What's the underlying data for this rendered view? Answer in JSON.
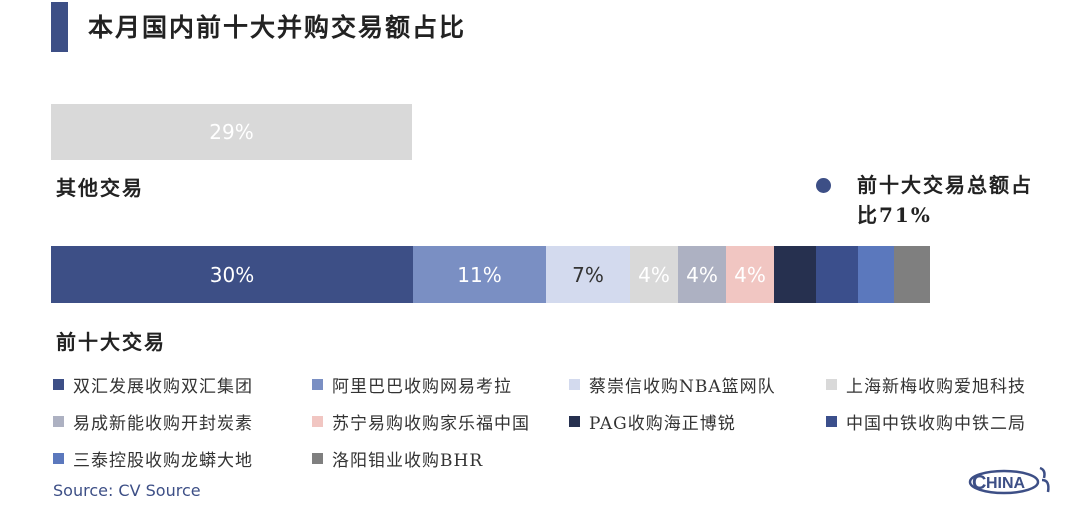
{
  "title": "本月国内前十大并购交易额占比",
  "labels": {
    "other": "其他交易",
    "top10": "前十大交易",
    "top10_total": "前十大交易总额占比71%"
  },
  "source": "Source: CV Source",
  "logo_text": "HINA",
  "chart_data": {
    "type": "bar",
    "title": "本月国内前十大并购交易额占比",
    "other": {
      "name": "其他交易",
      "value": 29,
      "label": "29%",
      "color": "#d9d9d9"
    },
    "top10_total": {
      "label": "前十大交易总额占比71%",
      "value": 71
    },
    "series": [
      {
        "name": "双汇发展收购双汇集团",
        "value": 30,
        "label": "30%",
        "color": "#3d4f86",
        "text_color": "#ffffff"
      },
      {
        "name": "阿里巴巴收购网易考拉",
        "value": 11,
        "label": "11%",
        "color": "#7a8fc3",
        "text_color": "#ffffff"
      },
      {
        "name": "蔡崇信收购NBA篮网队",
        "value": 7,
        "label": "7%",
        "color": "#d3daee",
        "text_color": "#333333"
      },
      {
        "name": "上海新梅收购爱旭科技",
        "value": 4,
        "label": "4%",
        "color": "#d9d9d9",
        "text_color": "#ffffff"
      },
      {
        "name": "易成新能收购开封炭素",
        "value": 4,
        "label": "4%",
        "color": "#adb1c2",
        "text_color": "#ffffff"
      },
      {
        "name": "苏宁易购收购家乐福中国",
        "value": 4,
        "label": "4%",
        "color": "#f1c6c2",
        "text_color": "#ffffff"
      },
      {
        "name": "PAG收购海正博锐",
        "value": 3.5,
        "label": "",
        "color": "#26304f",
        "text_color": "#ffffff"
      },
      {
        "name": "中国中铁收购中铁二局",
        "value": 3.5,
        "label": "",
        "color": "#3b4f8c",
        "text_color": "#ffffff"
      },
      {
        "name": "三泰控股收购龙蟒大地",
        "value": 3,
        "label": "",
        "color": "#5b78bd",
        "text_color": "#ffffff"
      },
      {
        "name": "洛阳钼业收购BHR",
        "value": 3,
        "label": "",
        "color": "#7f7f7f",
        "text_color": "#ffffff"
      }
    ]
  }
}
